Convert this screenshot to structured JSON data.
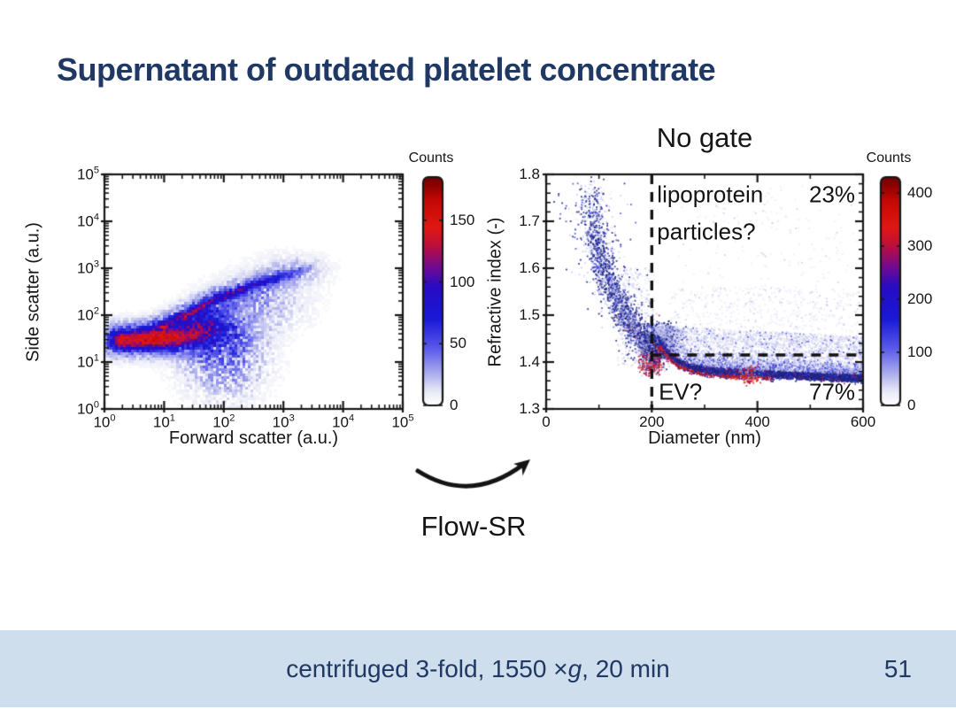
{
  "slide": {
    "title": "Supernatant of outdated platelet concentrate",
    "flow_sr_label": "Flow-SR",
    "footer": {
      "parts": [
        {
          "text": "centrifuged 3-fold, 1550 × "
        },
        {
          "text": "g"
        },
        {
          "text": ", 20 min"
        }
      ],
      "page_number": "51"
    },
    "colors": {
      "title_navy": "#1f3864",
      "footer_bg": "#cfdeec",
      "accent_red": "#d41a10",
      "accent_blue": "#2222cc"
    }
  },
  "chart_data": [
    {
      "type": "heatmap",
      "panel": "left",
      "title": "",
      "xlabel": "Forward scatter (a.u.)",
      "ylabel": "Side scatter (a.u.)",
      "xscale": "log",
      "yscale": "log",
      "xlim": [
        1,
        100000
      ],
      "ylim": [
        1,
        100000
      ],
      "log_base": "10",
      "xtick_exponents": [
        0,
        1,
        2,
        3,
        4,
        5
      ],
      "ytick_exponents": [
        0,
        1,
        2,
        3,
        4,
        5
      ],
      "grid": false,
      "colorbar": {
        "title": "Counts",
        "tick_labels": [
          "0",
          "50",
          "100",
          "150"
        ],
        "tick_values": [
          0,
          50,
          100,
          150
        ],
        "vmax": 185
      },
      "features": [
        {
          "kind": "ridge",
          "name": "platelet-band-core",
          "pts": [
            [
              0.3,
              1.47
            ],
            [
              0.75,
              1.49
            ],
            [
              1.1,
              1.5
            ],
            [
              1.4,
              1.56
            ],
            [
              1.6,
              1.68
            ]
          ],
          "amps": [
            0.85,
            1.0,
            0.92,
            0.55,
            0.35
          ],
          "sigma": 0.115,
          "noise": 0.15
        },
        {
          "kind": "ridge",
          "name": "platelet-band-halo",
          "pts": [
            [
              0.3,
              1.47
            ],
            [
              0.75,
              1.49
            ],
            [
              1.15,
              1.52
            ],
            [
              1.5,
              1.62
            ],
            [
              1.7,
              1.8
            ]
          ],
          "amps": [
            0.4,
            0.45,
            0.42,
            0.34,
            0.28
          ],
          "sigma": 0.23,
          "noise": 0.5
        },
        {
          "kind": "ridge",
          "name": "diagonal-band-core",
          "pts": [
            [
              0.95,
              1.74
            ],
            [
              1.35,
              1.99
            ],
            [
              1.8,
              2.3
            ],
            [
              2.45,
              2.62
            ],
            [
              3.0,
              2.85
            ],
            [
              3.45,
              3.02
            ]
          ],
          "amps": [
            0.4,
            0.5,
            0.48,
            0.4,
            0.22,
            0.04
          ],
          "sigma": 0.055,
          "noise": 0.35
        },
        {
          "kind": "ridge",
          "name": "diagonal-band-halo",
          "pts": [
            [
              1.0,
              1.76
            ],
            [
              1.4,
              2.0
            ],
            [
              1.85,
              2.3
            ],
            [
              2.5,
              2.6
            ],
            [
              3.05,
              2.85
            ],
            [
              3.5,
              3.0
            ]
          ],
          "amps": [
            0.2,
            0.22,
            0.2,
            0.14,
            0.09,
            0.03
          ],
          "sigma": 0.17,
          "noise": 0.75
        },
        {
          "kind": "blob",
          "name": "junction-spray",
          "c": [
            2.0,
            1.15
          ],
          "s": [
            0.48,
            0.62
          ],
          "amp": 0.16,
          "noise": 0.92
        },
        {
          "kind": "blob",
          "name": "junction-spray-2",
          "c": [
            1.85,
            1.55
          ],
          "s": [
            0.35,
            0.3
          ],
          "amp": 0.22,
          "noise": 0.85
        },
        {
          "kind": "blob",
          "name": "right-diffuse",
          "c": [
            2.6,
            2.25
          ],
          "s": [
            0.55,
            0.42
          ],
          "amp": 0.09,
          "noise": 0.9
        },
        {
          "kind": "blob",
          "name": "tip-halo",
          "c": [
            3.15,
            2.95
          ],
          "s": [
            0.45,
            0.28
          ],
          "amp": 0.055,
          "noise": 0.9
        }
      ]
    },
    {
      "type": "scatter",
      "panel": "right",
      "title": "No gate",
      "xlabel": "Diameter (nm)",
      "ylabel": "Refractive index (-)",
      "xlim": [
        0,
        600
      ],
      "ylim": [
        1.3,
        1.8
      ],
      "xtick_labels": [
        "0",
        "200",
        "400",
        "600"
      ],
      "xtick_values": [
        0,
        200,
        400,
        600
      ],
      "xminor_values": [
        100,
        300,
        500
      ],
      "ytick_labels": [
        "1.3",
        "1.4",
        "1.5",
        "1.6",
        "1.7",
        "1.8"
      ],
      "ytick_values": [
        1.3,
        1.4,
        1.5,
        1.6,
        1.7,
        1.8
      ],
      "grid": false,
      "colorbar": {
        "title": "Counts",
        "tick_labels": [
          "0",
          "100",
          "200",
          "300",
          "400"
        ],
        "tick_values": [
          0,
          100,
          200,
          300,
          400
        ],
        "vmax": 430
      },
      "gate": {
        "vline_x": 200,
        "hline_y": 1.415
      },
      "annotations": [
        {
          "name": "label-lipoprotein",
          "text": "lipoprotein",
          "x": 210,
          "y": 1.757,
          "ha": "left"
        },
        {
          "name": "label-23pct",
          "text": "23%",
          "x": 585,
          "y": 1.757,
          "ha": "right"
        },
        {
          "name": "label-particles",
          "text": "particles?",
          "x": 210,
          "y": 1.677,
          "ha": "left"
        },
        {
          "name": "label-ev",
          "text": "EV?",
          "x": 213,
          "y": 1.336,
          "ha": "left"
        },
        {
          "name": "label-77pct",
          "text": "77%",
          "x": 585,
          "y": 1.336,
          "ha": "right"
        }
      ],
      "features": [
        {
          "kind": "arc",
          "name": "small-particle-arc",
          "ri_top": 1.8,
          "ri_bot": 1.41,
          "x_top": 85,
          "x_gain": 122,
          "exp": 2.4,
          "spread_top": 15,
          "spread_bot": 10,
          "n": 2400
        },
        {
          "kind": "blobpts",
          "name": "gate-corner-knot",
          "c": [
            215,
            1.444
          ],
          "s": [
            16,
            0.017
          ],
          "n": 1500,
          "mix": {
            "dark": 0.55,
            "mid": 0.25,
            "light": 0.2
          }
        },
        {
          "kind": "blobpts",
          "name": "hook-below-gate",
          "c": [
            204,
            1.402
          ],
          "s": [
            10,
            0.013
          ],
          "n": 320,
          "mix": {
            "dark": 0.3,
            "crimson": 0.3,
            "red": 0.2,
            "light": 0.2
          }
        },
        {
          "kind": "polyband",
          "name": "ev-band-core",
          "pts": [
            [
              215,
              1.442
            ],
            [
              230,
              1.42
            ],
            [
              250,
              1.4
            ],
            [
              270,
              1.391
            ],
            [
              300,
              1.383
            ],
            [
              350,
              1.378
            ],
            [
              400,
              1.3755
            ],
            [
              450,
              1.3725
            ],
            [
              500,
              1.37
            ],
            [
              550,
              1.368
            ],
            [
              600,
              1.366
            ]
          ],
          "sigma": 0.0045,
          "n": 3200,
          "xpow": 0.85,
          "yoff": 0,
          "mix": {
            "dark": 0.7,
            "mid": 0.22,
            "crimson": 0.08
          }
        },
        {
          "kind": "polyband",
          "name": "ev-band-halo",
          "pts": [
            [
              215,
              1.442
            ],
            [
              230,
              1.42
            ],
            [
              250,
              1.4
            ],
            [
              270,
              1.391
            ],
            [
              300,
              1.383
            ],
            [
              350,
              1.378
            ],
            [
              400,
              1.3755
            ],
            [
              450,
              1.3725
            ],
            [
              500,
              1.37
            ],
            [
              550,
              1.368
            ],
            [
              600,
              1.366
            ]
          ],
          "sigma": 0.013,
          "n": 1700,
          "xpow": 0.8,
          "yoff": 0.009,
          "mix": {
            "light": 0.55,
            "mid": 0.3,
            "xlight": 0.15
          }
        },
        {
          "kind": "polyband",
          "name": "ev-band-red-fringe",
          "pts": [
            [
              215,
              1.442
            ],
            [
              230,
              1.42
            ],
            [
              250,
              1.4
            ],
            [
              270,
              1.391
            ],
            [
              300,
              1.383
            ],
            [
              350,
              1.378
            ],
            [
              400,
              1.3755
            ],
            [
              450,
              1.3725
            ],
            [
              500,
              1.37
            ],
            [
              550,
              1.368
            ],
            [
              600,
              1.366
            ]
          ],
          "sigma": 0.0035,
          "n": 430,
          "xpow": 1.4,
          "xmax": 430,
          "yoff": -0.007,
          "mix": {
            "red": 0.45,
            "crimson": 0.35,
            "dark": 0.2
          }
        },
        {
          "kind": "blobpts",
          "name": "red-feather-380",
          "c": [
            383,
            1.371
          ],
          "s": [
            11,
            0.009
          ],
          "n": 130,
          "mix": {
            "red": 0.4,
            "crimson": 0.3,
            "light": 0.3
          }
        },
        {
          "kind": "cloud",
          "name": "cloud-above-band",
          "x0": 205,
          "x1": 600,
          "n": 2300,
          "mix": {
            "xlight": 0.62,
            "light": 0.32,
            "mid": 0.06
          }
        },
        {
          "kind": "sparse",
          "name": "upper-mid-sparse",
          "x0": 230,
          "x1": 600,
          "y0": 1.43,
          "y1": 1.56,
          "n": 520,
          "mix": {
            "xlight": 0.85,
            "light": 0.15
          }
        },
        {
          "kind": "sparse",
          "name": "upper-right-sparse",
          "x0": 250,
          "x1": 600,
          "y0": 1.5,
          "y1": 1.78,
          "n": 230,
          "mix": {
            "xlight": 0.92,
            "light": 0.08
          }
        },
        {
          "kind": "sparse",
          "name": "left-of-gate-sparse",
          "x0": 135,
          "x1": 205,
          "y0": 1.39,
          "y1": 1.6,
          "n": 430,
          "mix": {
            "xlight": 0.55,
            "light": 0.35,
            "dark": 0.1
          }
        },
        {
          "kind": "sparse",
          "name": "left-red-radiating",
          "x0": 175,
          "x1": 215,
          "y0": 1.37,
          "y1": 1.42,
          "n": 150,
          "mix": {
            "crimson": 0.4,
            "red": 0.25,
            "light": 0.35
          }
        }
      ]
    }
  ]
}
